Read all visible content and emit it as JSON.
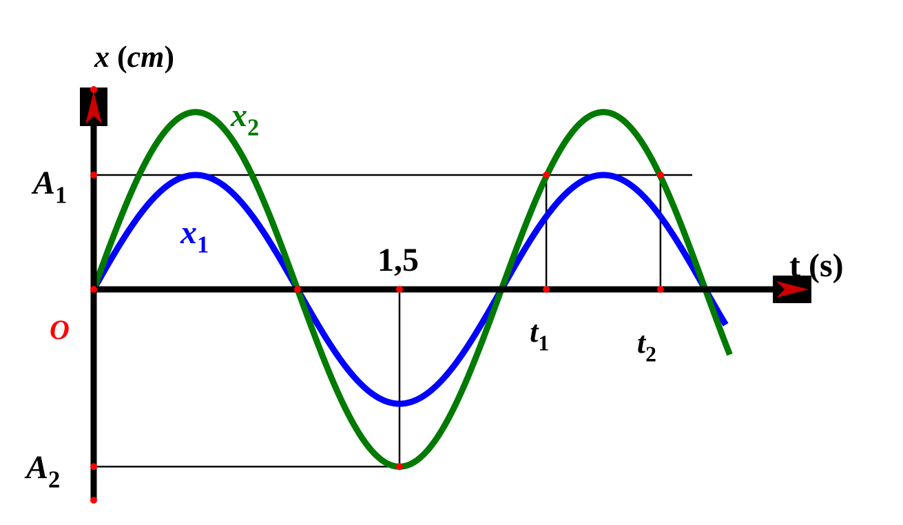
{
  "chart_data": {
    "type": "line",
    "xlabel": "t (s)",
    "ylabel": "x (cm)",
    "origin_label": "O",
    "x_tick_labels": [
      {
        "label": "1,5",
        "x": 1.5
      },
      {
        "label": "t",
        "sub": "1",
        "x": 2.22
      },
      {
        "label": "t",
        "sub": "2",
        "x": 2.78
      }
    ],
    "y_tick_labels": [
      {
        "label": "A",
        "sub": "1",
        "y": 1.0
      },
      {
        "label": "A",
        "sub": "2",
        "y": -1.55
      }
    ],
    "series": [
      {
        "name": "x",
        "sub": "1",
        "amplitude": 1.0,
        "period": 2.0,
        "color": "#0000ff"
      },
      {
        "name": "x",
        "sub": "2",
        "amplitude": 1.55,
        "period": 2.0,
        "color": "#007a00"
      }
    ],
    "xlim": [
      0,
      3.12
    ],
    "ylim": [
      -1.55,
      1.55
    ],
    "grid": false
  },
  "colors": {
    "axis": "#000000",
    "marker": "#ff0000",
    "origin": "#ff0000",
    "arrow": "#cc0000"
  }
}
